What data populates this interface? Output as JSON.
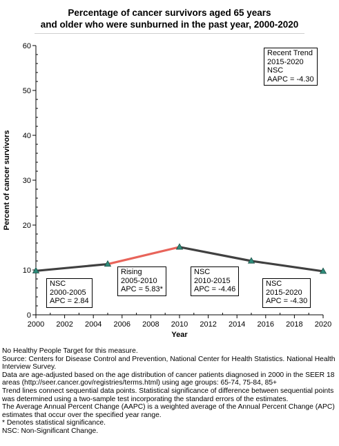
{
  "chart_data": {
    "type": "line",
    "title_line1": "Percentage of cancer survivors aged 65 years",
    "title_line2": "and older who were sunburned in the past year, 2000-2020",
    "xlabel": "Year",
    "ylabel": "Percent of cancer survivors",
    "xlim": [
      2000,
      2020
    ],
    "ylim": [
      0,
      60
    ],
    "xticks": [
      2000,
      2002,
      2004,
      2006,
      2008,
      2010,
      2012,
      2014,
      2016,
      2018,
      2020
    ],
    "yticks": [
      0,
      10,
      20,
      30,
      40,
      50,
      60
    ],
    "points": [
      {
        "x": 2000,
        "y": 9.8
      },
      {
        "x": 2005,
        "y": 11.3
      },
      {
        "x": 2010,
        "y": 15.1
      },
      {
        "x": 2015,
        "y": 12.0
      },
      {
        "x": 2020,
        "y": 9.7
      }
    ],
    "segments": [
      {
        "from": 2000,
        "to": 2005,
        "color": "#404040",
        "lines": [
          "NSC",
          "2000-2005",
          "APC =  2.84"
        ]
      },
      {
        "from": 2005,
        "to": 2010,
        "color": "#e8645a",
        "lines": [
          "Rising",
          "2005-2010",
          "APC =  5.83*"
        ]
      },
      {
        "from": 2010,
        "to": 2015,
        "color": "#404040",
        "lines": [
          "NSC",
          "2010-2015",
          "APC = -4.46"
        ]
      },
      {
        "from": 2015,
        "to": 2020,
        "color": "#404040",
        "lines": [
          "NSC",
          "2015-2020",
          "APC = -4.30"
        ]
      }
    ],
    "recent_trend": [
      "Recent Trend",
      "2015-2020",
      "NSC",
      "AAPC = -4.30"
    ],
    "marker_color": "#2e8b7a",
    "grid": false
  },
  "footnotes": [
    "No Healthy People Target for this measure.",
    "Source: Centers for Disease Control and Prevention, National Center for Health Statistics. National Health Interview Survey.",
    "Data are age-adjusted based on the age distribution of cancer patients diagnosed in 2000 in the SEER 18 areas (http://seer.cancer.gov/registries/terms.html) using age groups: 65-74, 75-84, 85+",
    "Trend lines connect sequential data points. Statistical significance of difference between sequential points was determined using a two-sample test incorporating the standard errors of the estimates.",
    "The Average Annual Percent Change (AAPC) is a weighted average of the Annual Percent Change (APC) estimates that occur over the specified year range.",
    "* Denotes statistical significance.",
    "NSC: Non-Significant Change."
  ]
}
